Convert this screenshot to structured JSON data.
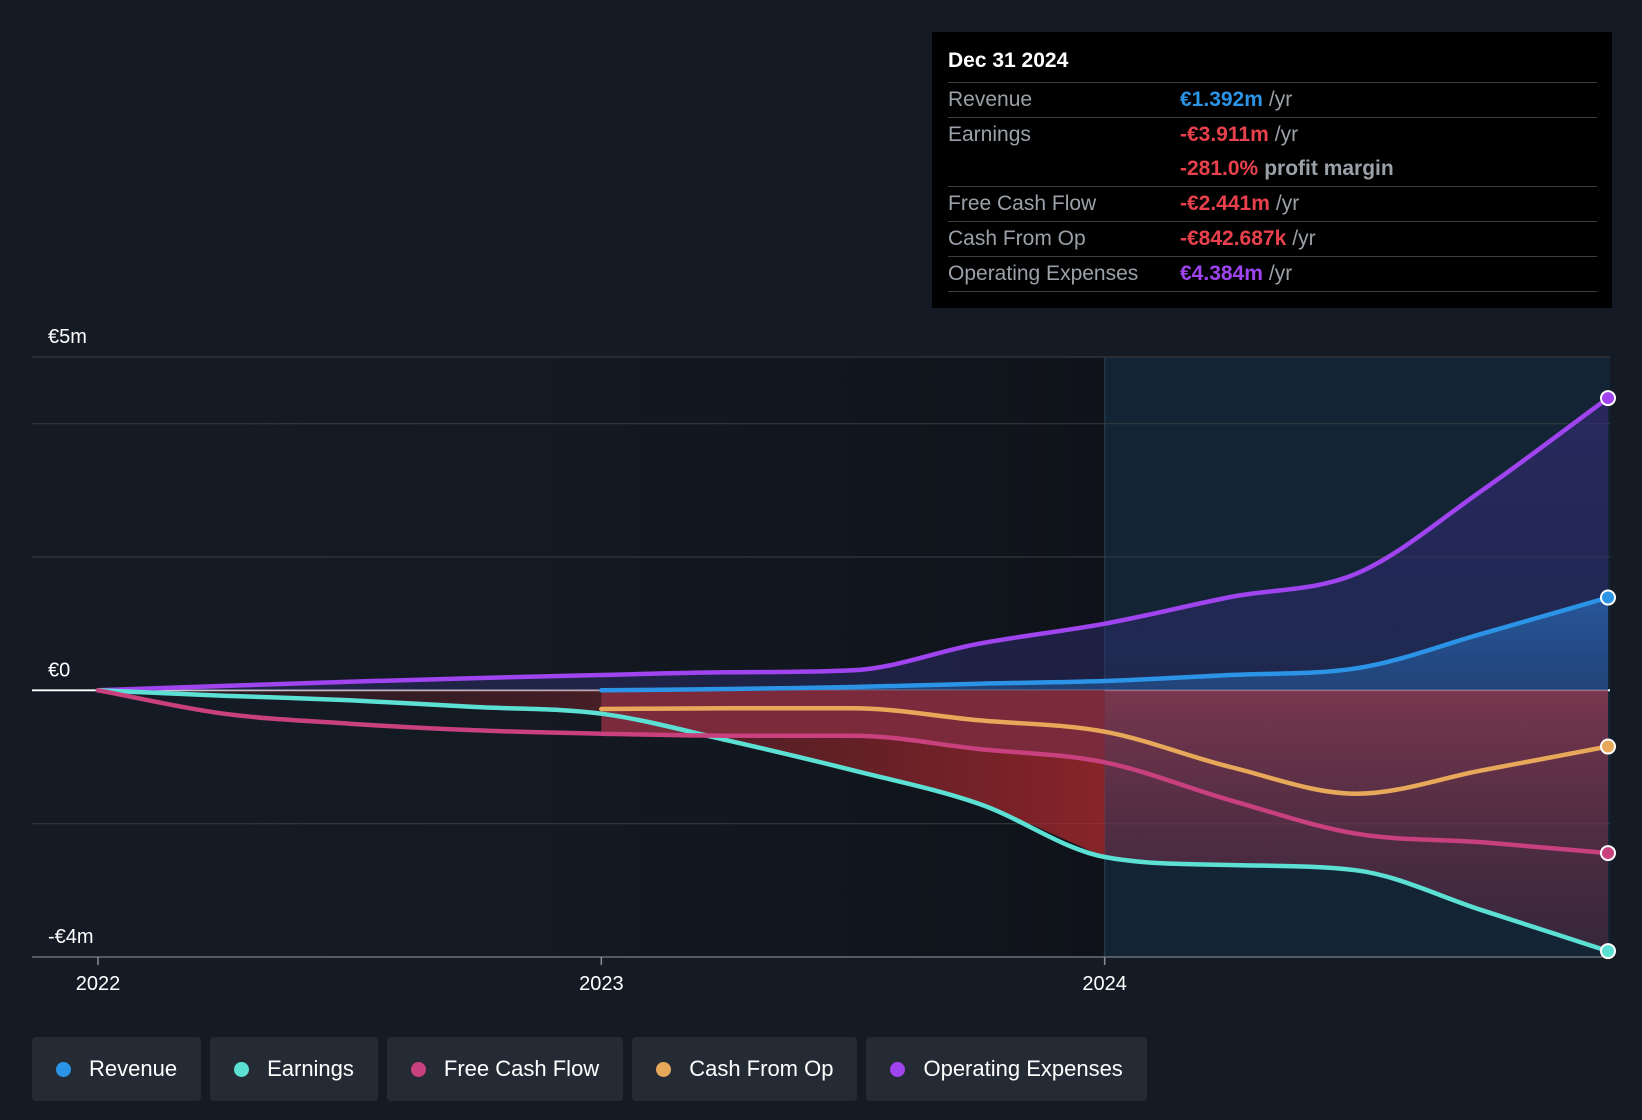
{
  "tooltip": {
    "date": "Dec 31 2024",
    "rows": [
      {
        "label": "Revenue",
        "value": "€1.392m",
        "unit": "/yr",
        "color": "#2b94e6"
      },
      {
        "label": "Earnings",
        "value": "-€3.911m",
        "unit": "/yr",
        "color": "#e8404c"
      },
      {
        "label": "",
        "value": "-281.0%",
        "unit": "profit margin",
        "color": "#e8404c"
      },
      {
        "label": "Free Cash Flow",
        "value": "-€2.441m",
        "unit": "/yr",
        "color": "#e8404c"
      },
      {
        "label": "Cash From Op",
        "value": "-€842.687k",
        "unit": "/yr",
        "color": "#e8404c"
      },
      {
        "label": "Operating Expenses",
        "value": "€4.384m",
        "unit": "/yr",
        "color": "#a044f0"
      }
    ]
  },
  "legend": [
    {
      "label": "Revenue",
      "color": "#2b94e6"
    },
    {
      "label": "Earnings",
      "color": "#5ce0d4"
    },
    {
      "label": "Free Cash Flow",
      "color": "#c8407e"
    },
    {
      "label": "Cash From Op",
      "color": "#e8a85a"
    },
    {
      "label": "Operating Expenses",
      "color": "#a044f0"
    }
  ],
  "chart_data": {
    "type": "area",
    "title": "",
    "xlabel": "",
    "ylabel": "",
    "ylim": [
      -4,
      5
    ],
    "y_tick_labels": [
      {
        "value": 5,
        "label": "€5m"
      },
      {
        "value": 0,
        "label": "€0"
      },
      {
        "value": -4,
        "label": "-€4m"
      }
    ],
    "y_grid": [
      5,
      4,
      2,
      0,
      -2,
      -4
    ],
    "x_tick_labels": [
      {
        "value": 2022.0,
        "label": "2022"
      },
      {
        "value": 2023.0,
        "label": "2023"
      },
      {
        "value": 2024.0,
        "label": "2024"
      }
    ],
    "xlim": [
      2021.87,
      2025.0
    ],
    "forecast_start": 2024.0,
    "series": [
      {
        "name": "Operating Expenses",
        "color": "#a044f0",
        "x": [
          2022.0,
          2022.5,
          2023.0,
          2023.25,
          2023.5,
          2023.75,
          2024.0,
          2024.25,
          2024.5,
          2024.75,
          2025.0
        ],
        "y": [
          0,
          0.13,
          0.23,
          0.27,
          0.3,
          0.7,
          1.0,
          1.4,
          1.75,
          3.0,
          4.384
        ]
      },
      {
        "name": "Revenue",
        "color": "#2b94e6",
        "x": [
          2023.0,
          2023.25,
          2023.5,
          2023.75,
          2024.0,
          2024.25,
          2024.5,
          2024.75,
          2025.0
        ],
        "y": [
          0.0,
          0.02,
          0.05,
          0.1,
          0.14,
          0.23,
          0.33,
          0.85,
          1.392
        ]
      },
      {
        "name": "Cash From Op",
        "color": "#e8a85a",
        "x": [
          2023.0,
          2023.25,
          2023.5,
          2023.75,
          2024.0,
          2024.25,
          2024.5,
          2024.75,
          2025.0
        ],
        "y": [
          -0.28,
          -0.27,
          -0.27,
          -0.45,
          -0.62,
          -1.15,
          -1.55,
          -1.2,
          -0.843
        ]
      },
      {
        "name": "Free Cash Flow",
        "color": "#c8407e",
        "x": [
          2022.0,
          2022.25,
          2022.5,
          2022.75,
          2023.0,
          2023.25,
          2023.5,
          2023.75,
          2024.0,
          2024.25,
          2024.5,
          2024.75,
          2025.0
        ],
        "y": [
          0,
          -0.35,
          -0.5,
          -0.6,
          -0.65,
          -0.68,
          -0.68,
          -0.88,
          -1.08,
          -1.65,
          -2.15,
          -2.28,
          -2.441
        ]
      },
      {
        "name": "Earnings",
        "color": "#5ce0d4",
        "x": [
          2022.0,
          2022.25,
          2022.5,
          2022.75,
          2023.0,
          2023.25,
          2023.5,
          2023.75,
          2024.0,
          2024.25,
          2024.5,
          2024.75,
          2025.0
        ],
        "y": [
          0,
          -0.08,
          -0.15,
          -0.25,
          -0.35,
          -0.75,
          -1.2,
          -1.7,
          -2.5,
          -2.62,
          -2.7,
          -3.3,
          -3.911
        ]
      }
    ]
  }
}
